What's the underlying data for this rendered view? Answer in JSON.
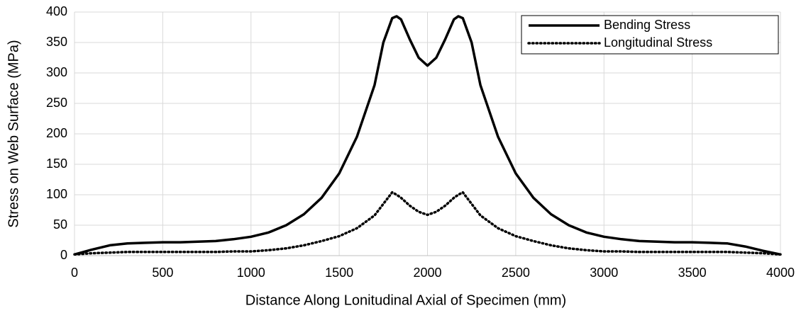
{
  "chart_data": {
    "type": "line",
    "xlabel": "Distance Along Lonitudinal Axial of Specimen (mm)",
    "ylabel": "Stress on Web Surface (MPa)",
    "x": [
      0,
      100,
      200,
      300,
      400,
      500,
      600,
      700,
      800,
      900,
      1000,
      1100,
      1200,
      1300,
      1400,
      1500,
      1600,
      1700,
      1750,
      1800,
      1825,
      1850,
      1900,
      1950,
      2000,
      2050,
      2100,
      2150,
      2175,
      2200,
      2250,
      2300,
      2400,
      2500,
      2600,
      2700,
      2800,
      2900,
      3000,
      3100,
      3200,
      3300,
      3400,
      3500,
      3600,
      3700,
      3800,
      3900,
      4000
    ],
    "series": [
      {
        "name": "Bending Stress",
        "color": "#000000",
        "style": "solid",
        "values": [
          2,
          10,
          17,
          20,
          21,
          22,
          22,
          23,
          24,
          27,
          31,
          38,
          50,
          68,
          95,
          135,
          195,
          280,
          350,
          390,
          393,
          388,
          355,
          325,
          312,
          325,
          355,
          388,
          393,
          390,
          350,
          280,
          195,
          135,
          95,
          68,
          50,
          38,
          31,
          27,
          24,
          23,
          22,
          22,
          21,
          20,
          15,
          8,
          2
        ]
      },
      {
        "name": "Longitudinal Stress",
        "color": "#000000",
        "style": "dotted",
        "values": [
          2,
          4,
          5,
          6,
          6,
          6,
          6,
          6,
          6,
          7,
          7,
          9,
          12,
          17,
          24,
          32,
          45,
          66,
          85,
          104,
          100,
          95,
          82,
          72,
          67,
          72,
          82,
          95,
          100,
          104,
          85,
          66,
          45,
          32,
          24,
          17,
          12,
          9,
          7,
          7,
          6,
          6,
          6,
          6,
          6,
          6,
          5,
          4,
          2
        ]
      }
    ],
    "xlim": [
      0,
      4000
    ],
    "xticks": [
      0,
      500,
      1000,
      1500,
      2000,
      2500,
      3000,
      3500,
      4000
    ],
    "ylim": [
      0,
      400
    ],
    "yticks": [
      0,
      50,
      100,
      150,
      200,
      250,
      300,
      350,
      400
    ],
    "grid": true,
    "legend": "upper right"
  }
}
